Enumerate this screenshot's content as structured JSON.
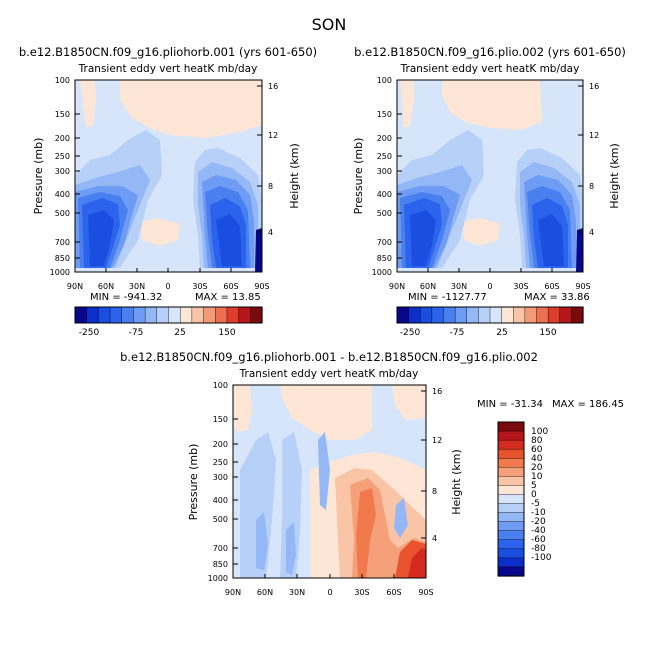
{
  "page_title": "SON",
  "chart_data": [
    {
      "type": "heatmap",
      "id": "p1",
      "case_title": "b.e12.B1850CN.f09_g16.pliohorb.001 (yrs 601-650)",
      "variable_title": "Transient eddy vert heatK mb/day",
      "ylabel": "Pressure (mb)",
      "y2label": "Height (km)",
      "x_ticks": [
        "90N",
        "60N",
        "30N",
        "0",
        "30S",
        "60S",
        "90S"
      ],
      "y_ticks": [
        "100",
        "150",
        "200",
        "250",
        "300",
        "400",
        "500",
        "700",
        "850",
        "1000"
      ],
      "y2_ticks": [
        "16",
        "12",
        "8",
        "4"
      ],
      "min_label": "MIN = -941.32",
      "max_label": "MAX = 13.85",
      "min": -941.32,
      "max": 13.85,
      "colorbar_labels": [
        "-250",
        "-75",
        "25",
        "150"
      ]
    },
    {
      "type": "heatmap",
      "id": "p2",
      "case_title": "b.e12.B1850CN.f09_g16.plio.002 (yrs 601-650)",
      "variable_title": "Transient eddy vert heatK mb/day",
      "ylabel": "Pressure (mb)",
      "y2label": "Height (km)",
      "x_ticks": [
        "90N",
        "60N",
        "30N",
        "0",
        "30S",
        "60S",
        "90S"
      ],
      "y_ticks": [
        "100",
        "150",
        "200",
        "250",
        "300",
        "400",
        "500",
        "700",
        "850",
        "1000"
      ],
      "y2_ticks": [
        "16",
        "12",
        "8",
        "4"
      ],
      "min_label": "MIN = -1127.77",
      "max_label": "MAX = 33.86",
      "min": -1127.77,
      "max": 33.86,
      "colorbar_labels": [
        "-250",
        "-75",
        "25",
        "150"
      ]
    },
    {
      "type": "heatmap",
      "id": "p3",
      "case_title": "b.e12.B1850CN.f09_g16.pliohorb.001 - b.e12.B1850CN.f09_g16.plio.002",
      "variable_title": "Transient eddy vert heatK mb/day",
      "ylabel": "Pressure (mb)",
      "y2label": "Height (km)",
      "x_ticks": [
        "90N",
        "60N",
        "30N",
        "0",
        "30S",
        "60S",
        "90S"
      ],
      "y_ticks": [
        "100",
        "150",
        "200",
        "250",
        "300",
        "400",
        "500",
        "700",
        "850",
        "1000"
      ],
      "y2_ticks": [
        "16",
        "12",
        "8",
        "4"
      ],
      "min_label": "MIN = -31.34",
      "max_label": "MAX = 186.45",
      "min": -31.34,
      "max": 186.45,
      "colorbar_labels": [
        "100",
        "80",
        "60",
        "40",
        "20",
        "10",
        "5",
        "0",
        "-5",
        "-10",
        "-20",
        "-40",
        "-60",
        "-80",
        "-100"
      ]
    }
  ],
  "colorbars": {
    "top_colors": [
      "#08088c",
      "#0c2ecb",
      "#1a4ee0",
      "#2c63ec",
      "#4a7ff0",
      "#6e9bf3",
      "#94b7f5",
      "#b7d0f8",
      "#d7e5fb",
      "#fde6d6",
      "#f8c4a8",
      "#f39b79",
      "#ec6f4f",
      "#dc3e2b",
      "#b4161a",
      "#7a0a0d"
    ],
    "diff_colors": [
      "#7a0a0d",
      "#b4161a",
      "#d42b20",
      "#e8522d",
      "#f07a4b",
      "#f6a07a",
      "#f9c5a6",
      "#fde6d6",
      "#d7e5fb",
      "#b7d0f8",
      "#94b7f5",
      "#6e9bf3",
      "#4a7ff0",
      "#2c63ec",
      "#1a4ee0",
      "#0c2ecb",
      "#08088c"
    ]
  }
}
